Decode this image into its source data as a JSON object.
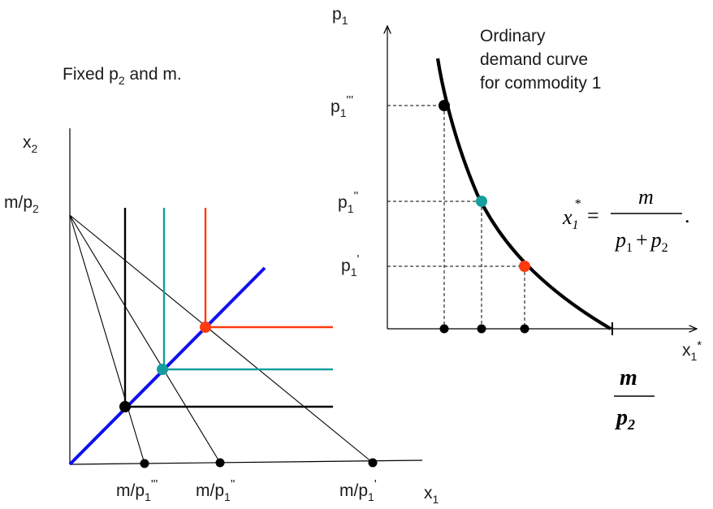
{
  "left_panel": {
    "caption": "Fixed p",
    "caption_sub": "2",
    "caption_tail": " and m.",
    "y_axis_label": "x",
    "y_axis_sub": "2",
    "x_axis_label": "x",
    "x_axis_sub": "1",
    "intercept_label": "m/p",
    "intercept_sub": "2",
    "x_intercepts": [
      {
        "pre": "m/p",
        "sub": "1",
        "post": "'''"
      },
      {
        "pre": "m/p",
        "sub": "1",
        "post": "''"
      },
      {
        "pre": "m/p",
        "sub": "1",
        "post": "'"
      }
    ]
  },
  "right_panel": {
    "y_axis_label": "p",
    "y_axis_sub": "1",
    "x_axis_label": "x",
    "x_axis_sub": "1",
    "x_axis_sup": "*",
    "curve_caption": [
      "Ordinary",
      "demand curve",
      "for commodity 1"
    ],
    "price_levels": [
      {
        "pre": "p",
        "sub": "1",
        "post": "'''"
      },
      {
        "pre": "p",
        "sub": "1",
        "post": "''"
      },
      {
        "pre": "p",
        "sub": "1",
        "post": "'"
      }
    ],
    "formula": {
      "lhs": "x",
      "lhs_sub": "1",
      "lhs_sup": "*",
      "eq": "=",
      "num": "m",
      "den_a": "p",
      "den_a_sub": "1",
      "plus": "+",
      "den_b": "p",
      "den_b_sub": "2",
      "tail": "."
    },
    "asymptote": {
      "num": "m",
      "den": "p",
      "den_sub": "2"
    }
  },
  "colors": {
    "axis": "#000000",
    "diagonal": "#1010f0",
    "black_case": "#000000",
    "teal_case": "#159e9e",
    "red_case": "#ff3b10",
    "curve": "#000000"
  }
}
